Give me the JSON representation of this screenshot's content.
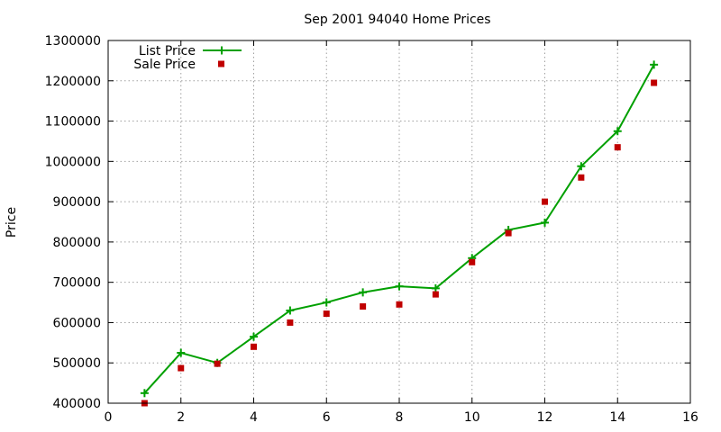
{
  "chart_data": {
    "type": "line",
    "title": "Sep 2001 94040 Home Prices",
    "xlabel": "",
    "ylabel": "Price",
    "xlim": [
      0,
      16
    ],
    "ylim": [
      400000,
      1300000
    ],
    "x_ticks": [
      "0",
      "2",
      "4",
      "6",
      "8",
      "10",
      "12",
      "14",
      "16"
    ],
    "y_ticks": [
      "400000",
      "500000",
      "600000",
      "700000",
      "800000",
      "900000",
      "1000000",
      "1100000",
      "1200000",
      "1300000"
    ],
    "grid": true,
    "legend_position": "top-left",
    "series": [
      {
        "name": "List Price",
        "style": "line-points",
        "marker": "plus",
        "color": "#00a000",
        "x": [
          1,
          2,
          3,
          4,
          5,
          6,
          7,
          8,
          9,
          10,
          11,
          12,
          13,
          14,
          15
        ],
        "values": [
          425000,
          525000,
          500000,
          565000,
          630000,
          650000,
          675000,
          690000,
          685000,
          760000,
          830000,
          848000,
          988000,
          1075000,
          1240000
        ]
      },
      {
        "name": "Sale Price",
        "style": "points",
        "marker": "square",
        "color": "#c00000",
        "x": [
          1,
          2,
          3,
          4,
          5,
          6,
          7,
          8,
          9,
          10,
          11,
          12,
          13,
          14,
          15
        ],
        "values": [
          400000,
          487000,
          498000,
          540000,
          600000,
          622000,
          640000,
          645000,
          670000,
          750000,
          822000,
          900000,
          960000,
          1035000,
          1195000
        ]
      }
    ]
  }
}
